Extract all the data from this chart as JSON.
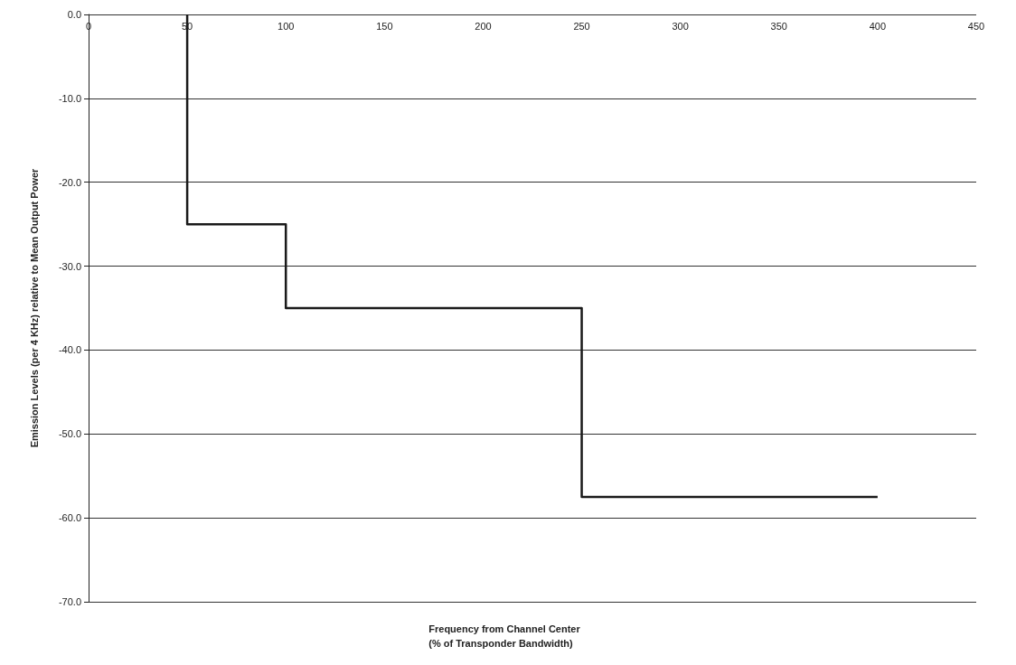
{
  "chart_data": {
    "type": "line",
    "xlabel": "Frequency from Channel Center\n(% of Transponder Bandwidth)",
    "ylabel": "Emission Levels (per 4 KHz) relative to Mean Output Power",
    "x": [
      50,
      50,
      100,
      100,
      250,
      250,
      400
    ],
    "series": [
      {
        "color": "#1a1a1a",
        "values": [
          0,
          -25,
          -25,
          -35,
          -35,
          -57.5,
          -57.5
        ]
      }
    ],
    "xlim": [
      0,
      450
    ],
    "xticks": [
      0,
      50,
      100,
      150,
      200,
      250,
      300,
      350,
      400,
      450
    ],
    "ylim": [
      -70,
      0
    ],
    "yticks": [
      {
        "value": 0,
        "label": "0.0"
      },
      {
        "value": -10,
        "label": "-10.0"
      },
      {
        "value": -20,
        "label": "-20.0"
      },
      {
        "value": -30,
        "label": "-30.0"
      },
      {
        "value": -40,
        "label": "-40.0"
      },
      {
        "value": -50,
        "label": "-50.0"
      },
      {
        "value": -60,
        "label": "-60.0"
      },
      {
        "value": -70,
        "label": "-70.0"
      }
    ],
    "grid": "y",
    "marker": "none",
    "line_style": "solid"
  }
}
